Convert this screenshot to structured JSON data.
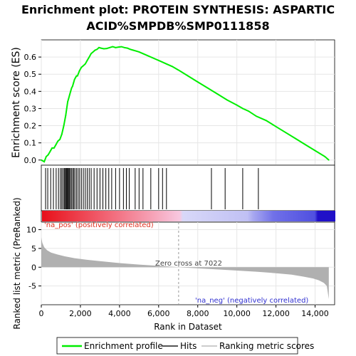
{
  "chart_data": [
    {
      "type": "line",
      "title_line1": "Enrichment plot: PROTEIN SYNTHESIS: ASPARTIC",
      "title_line2": "ACID%SMPDB%SMP0111858",
      "ylabel": "Enrichment score (ES)",
      "ylim": [
        -0.03,
        0.7
      ],
      "xlim": [
        0,
        15000
      ],
      "y_ticks": [
        0.0,
        0.1,
        0.2,
        0.3,
        0.4,
        0.5,
        0.6
      ],
      "y_tick_labels": [
        "0.0",
        "0.1",
        "0.2",
        "0.3",
        "0.4",
        "0.5",
        "0.6"
      ],
      "series": [
        {
          "name": "Enrichment profile",
          "color": "#00ee00",
          "x": [
            0,
            150,
            250,
            350,
            450,
            550,
            650,
            750,
            850,
            950,
            1050,
            1150,
            1250,
            1300,
            1350,
            1400,
            1450,
            1500,
            1550,
            1600,
            1650,
            1700,
            1750,
            1800,
            1850,
            1950,
            2050,
            2150,
            2250,
            2350,
            2450,
            2550,
            2650,
            2750,
            2850,
            2950,
            3050,
            3200,
            3350,
            3500,
            3650,
            3800,
            3950,
            4100,
            4250,
            4400,
            4550,
            4700,
            4850,
            5000,
            5200,
            5500,
            5800,
            6100,
            6400,
            6700,
            7000,
            7500,
            8000,
            8500,
            9000,
            9500,
            10000,
            10300,
            10600,
            11000,
            11500,
            12000,
            12500,
            13000,
            13500,
            14000,
            14500,
            14700
          ],
          "y": [
            0.0,
            -0.01,
            0.02,
            0.03,
            0.05,
            0.07,
            0.07,
            0.09,
            0.11,
            0.12,
            0.15,
            0.2,
            0.26,
            0.3,
            0.34,
            0.36,
            0.38,
            0.4,
            0.42,
            0.43,
            0.45,
            0.47,
            0.48,
            0.49,
            0.49,
            0.52,
            0.54,
            0.55,
            0.56,
            0.58,
            0.6,
            0.62,
            0.63,
            0.64,
            0.645,
            0.655,
            0.652,
            0.648,
            0.65,
            0.655,
            0.66,
            0.655,
            0.658,
            0.66,
            0.655,
            0.652,
            0.645,
            0.64,
            0.635,
            0.63,
            0.62,
            0.605,
            0.59,
            0.575,
            0.56,
            0.545,
            0.525,
            0.49,
            0.455,
            0.42,
            0.385,
            0.35,
            0.32,
            0.3,
            0.285,
            0.255,
            0.23,
            0.195,
            0.16,
            0.125,
            0.09,
            0.055,
            0.02,
            0.0
          ]
        }
      ]
    },
    {
      "type": "heatmap",
      "name": "Hits",
      "hit_positions": [
        220,
        330,
        480,
        620,
        760,
        880,
        980,
        1050,
        1120,
        1180,
        1230,
        1270,
        1310,
        1350,
        1390,
        1430,
        1480,
        1540,
        1600,
        1660,
        1720,
        1800,
        1880,
        1960,
        2050,
        2150,
        2250,
        2350,
        2450,
        2550,
        2700,
        2850,
        3000,
        3150,
        3300,
        3450,
        3600,
        3800,
        4000,
        4200,
        4350,
        4500,
        4800,
        5000,
        5200,
        5600,
        6000,
        6200,
        6400,
        8700,
        9400,
        10300,
        11100
      ],
      "color_gradient": [
        "#e8181d",
        "#f2a0a8",
        "#d8d8f8",
        "#5050e0",
        "#2020c0"
      ],
      "xlim": [
        0,
        15000
      ]
    },
    {
      "type": "area",
      "ylabel": "Ranked list metric (PreRanked)",
      "xlabel": "Rank in Dataset",
      "xlim": [
        0,
        15000
      ],
      "ylim": [
        -10,
        12
      ],
      "x_ticks": [
        0,
        2000,
        4000,
        6000,
        8000,
        10000,
        12000,
        14000
      ],
      "x_tick_labels": [
        "0",
        "2,000",
        "4,000",
        "6,000",
        "8,000",
        "10,000",
        "12,000",
        "14,000"
      ],
      "y_ticks": [
        -5,
        0,
        5,
        10
      ],
      "y_tick_labels": [
        "-5",
        "0",
        "5",
        "10"
      ],
      "series": [
        {
          "name": "Ranking metric scores",
          "color": "#b0b0b0",
          "x": [
            0,
            50,
            150,
            300,
            500,
            800,
            1200,
            1700,
            2300,
            3000,
            4000,
            5000,
            6000,
            7022,
            8000,
            9000,
            10000,
            11000,
            12000,
            12800,
            13400,
            13900,
            14200,
            14450,
            14600,
            14700
          ],
          "y": [
            8.0,
            6.5,
            5.3,
            4.5,
            3.9,
            3.4,
            2.9,
            2.4,
            2.0,
            1.6,
            1.1,
            0.7,
            0.35,
            0.0,
            -0.3,
            -0.6,
            -0.9,
            -1.2,
            -1.6,
            -2.0,
            -2.5,
            -3.0,
            -3.5,
            -4.2,
            -5.0,
            -8.5
          ]
        }
      ],
      "zero_cross_label": "Zero cross at 7022",
      "zero_cross": 7022,
      "pos_label": "'na_pos' (positively correlated)",
      "neg_label": "'na_neg' (negatively correlated)"
    }
  ],
  "legend": {
    "items": [
      {
        "label": "Enrichment profile",
        "color": "#00ee00"
      },
      {
        "label": "Hits",
        "color": "#555555"
      },
      {
        "label": "Ranking metric scores",
        "color": "#cccccc"
      }
    ]
  }
}
